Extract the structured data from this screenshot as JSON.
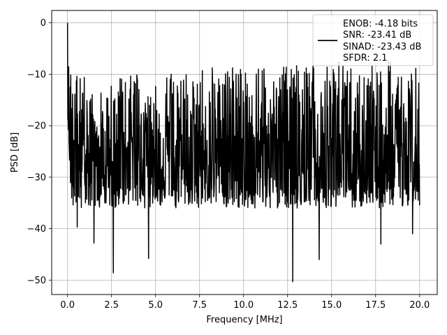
{
  "chart_data": {
    "type": "line",
    "xlabel": "Frequency [MHz]",
    "ylabel": "PSD [dB]",
    "xlim": [
      -0.9,
      21.0
    ],
    "ylim": [
      -52.8,
      2.4
    ],
    "xticks": [
      0.0,
      2.5,
      5.0,
      7.5,
      10.0,
      12.5,
      15.0,
      17.5,
      20.0
    ],
    "xtick_labels": [
      "0.0",
      "2.5",
      "5.0",
      "7.5",
      "10.0",
      "12.5",
      "15.0",
      "17.5",
      "20.0"
    ],
    "yticks": [
      0,
      -10,
      -20,
      -30,
      -40,
      -50
    ],
    "ytick_labels": [
      "0",
      "−10",
      "−20",
      "−30",
      "−40",
      "−50"
    ],
    "grid": true,
    "legend_position": "top-right",
    "legend": {
      "entries": [
        "ENOB: -4.18 bits",
        "SNR: -23.41 dB",
        "SINAD: -23.43 dB",
        "SFDR: 2.1"
      ]
    },
    "series": [
      {
        "color": "#000000",
        "x_range": [
          0.0,
          20.0
        ],
        "n_points": 1200,
        "envelope_upper": [
          [
            0.0,
            0.0
          ],
          [
            0.1,
            -3.0
          ],
          [
            0.4,
            -10.0
          ],
          [
            3.0,
            -10.0
          ],
          [
            10.0,
            -8.0
          ],
          [
            20.0,
            -7.0
          ]
        ],
        "envelope_lower": [
          [
            0.0,
            -25.0
          ],
          [
            0.2,
            -36.0
          ],
          [
            20.0,
            -36.0
          ]
        ],
        "labeled_dips": [
          {
            "x": 0.55,
            "y": -39.7
          },
          {
            "x": 1.5,
            "y": -42.8
          },
          {
            "x": 2.6,
            "y": -48.6
          },
          {
            "x": 4.6,
            "y": -45.8
          },
          {
            "x": 12.8,
            "y": -50.3
          },
          {
            "x": 14.3,
            "y": -46.0
          },
          {
            "x": 17.8,
            "y": -43.0
          },
          {
            "x": 19.6,
            "y": -41.0
          }
        ]
      }
    ]
  }
}
